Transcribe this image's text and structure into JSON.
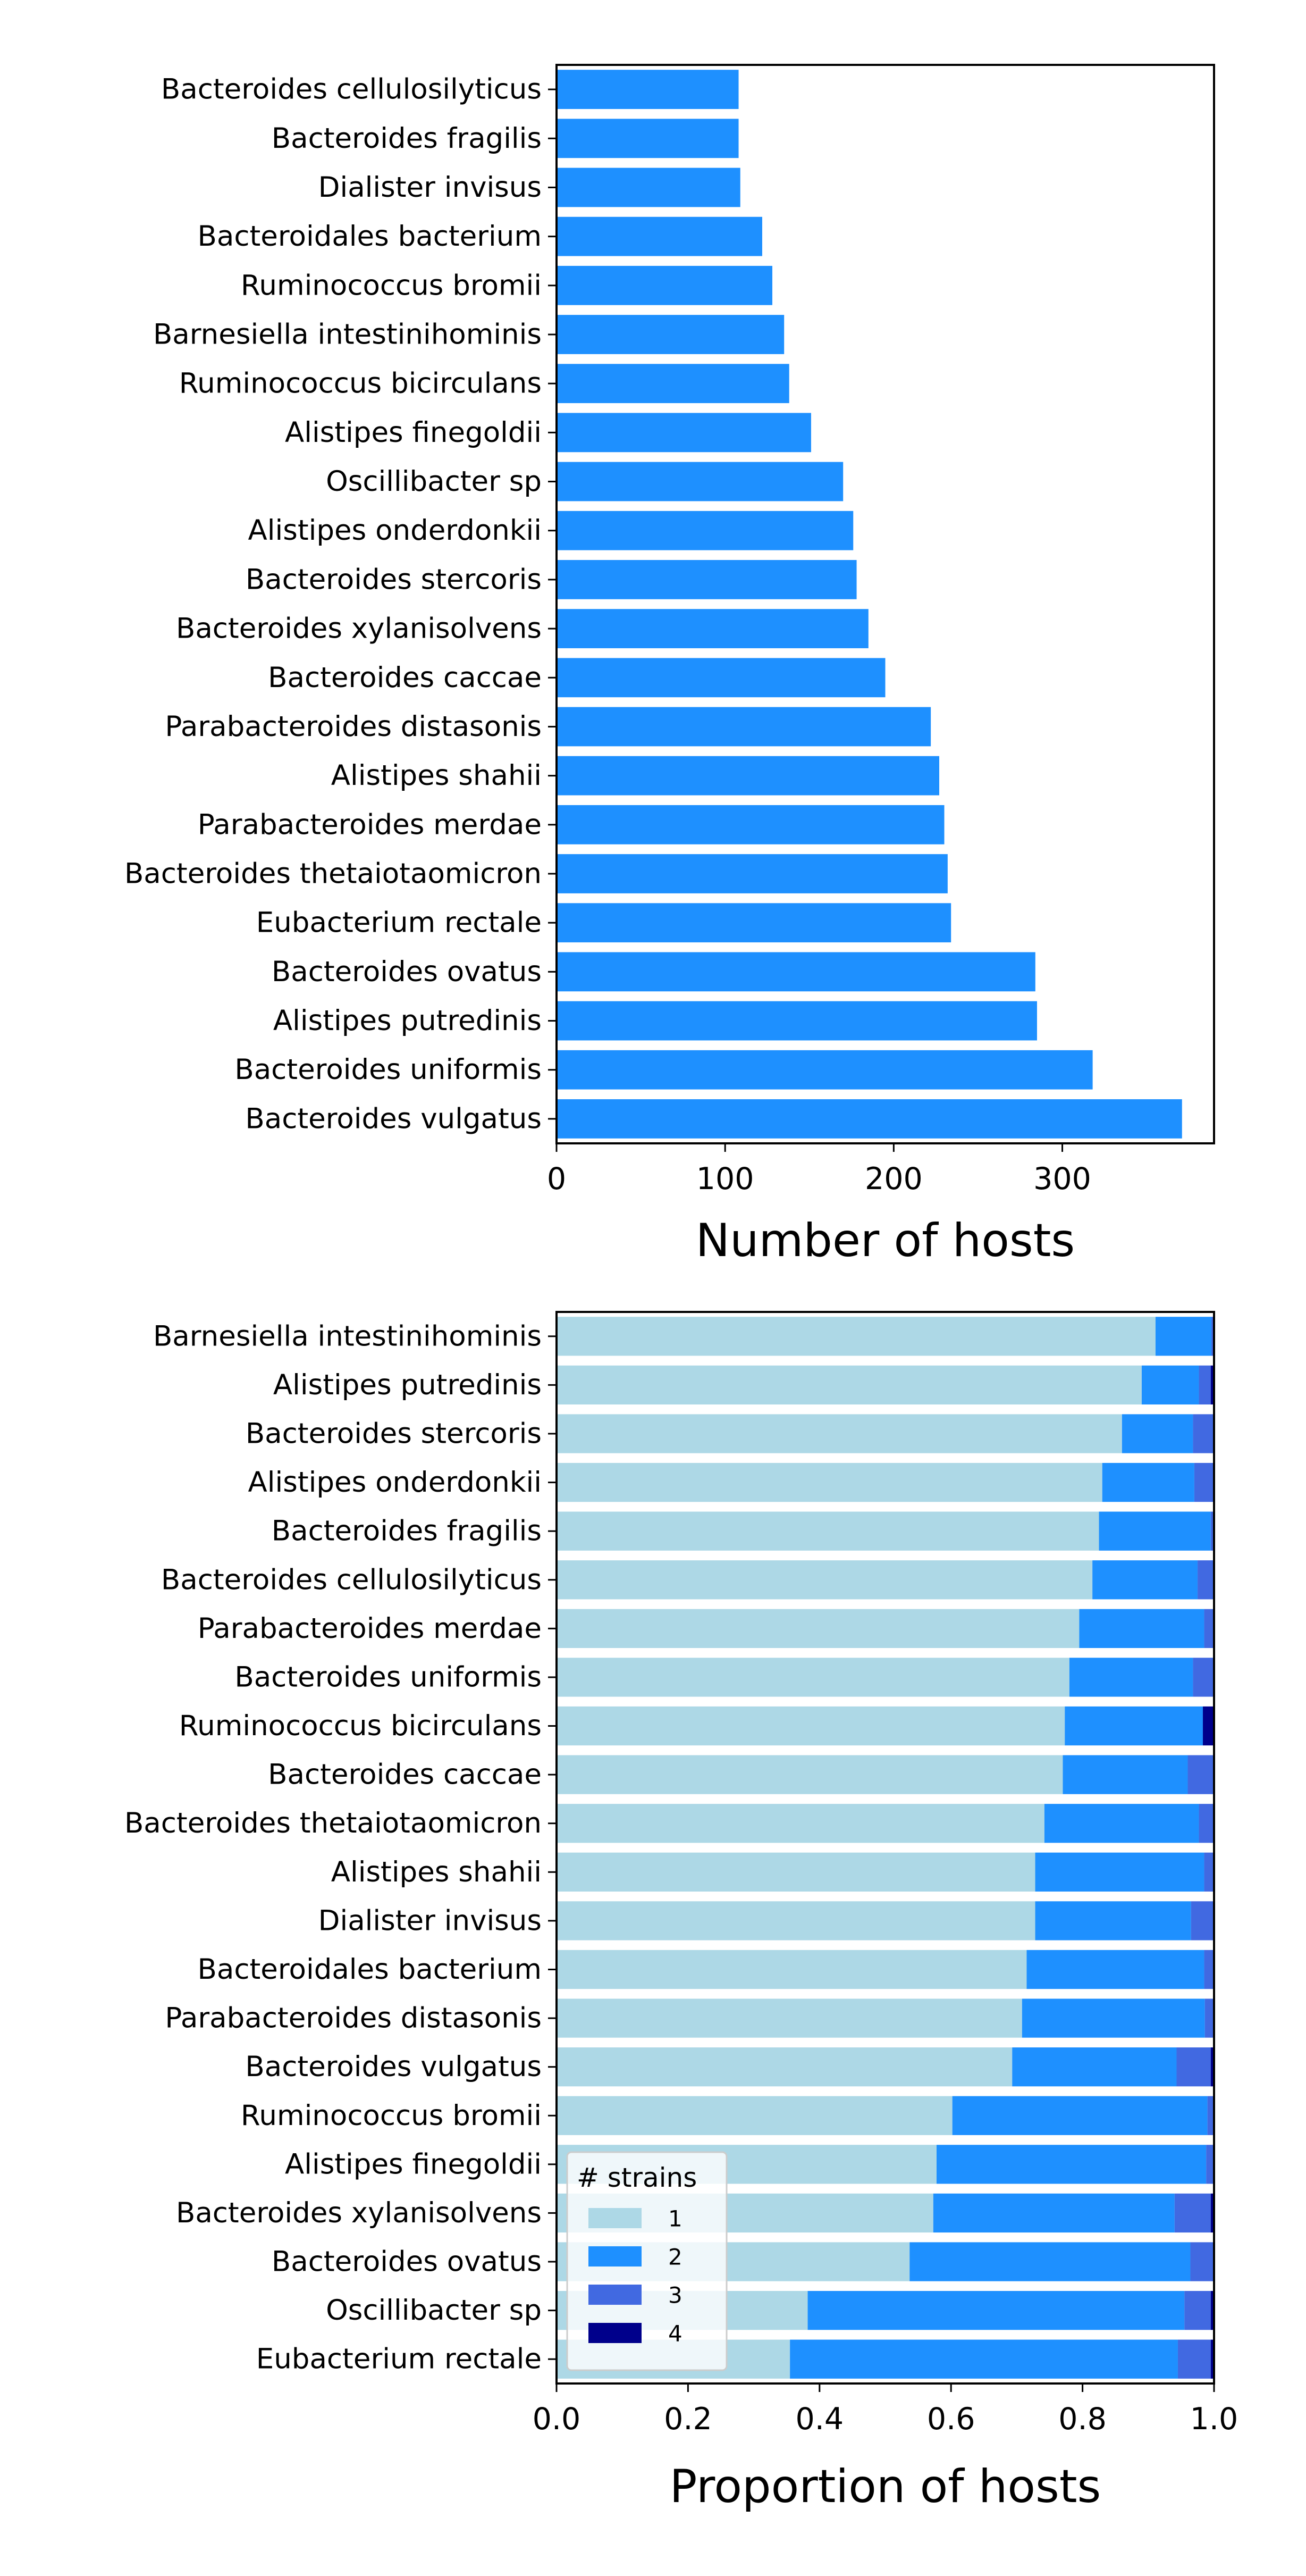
{
  "chart_data": [
    {
      "type": "bar",
      "orientation": "horizontal",
      "xlabel": "Number of hosts",
      "ylabel": "",
      "xlim": [
        0,
        390
      ],
      "xticks": [
        "0",
        "100",
        "200",
        "300"
      ],
      "grid": false,
      "color": "#1e90ff",
      "categories": [
        "Bacteroides cellulosilyticus",
        "Bacteroides fragilis",
        "Dialister invisus",
        "Bacteroidales bacterium",
        "Ruminococcus bromii",
        "Barnesiella intestinihominis",
        "Ruminococcus bicirculans",
        "Alistipes finegoldii",
        "Oscillibacter sp",
        "Alistipes onderdonkii",
        "Bacteroides stercoris",
        "Bacteroides xylanisolvens",
        "Bacteroides caccae",
        "Parabacteroides distasonis",
        "Alistipes shahii",
        "Parabacteroides merdae",
        "Bacteroides thetaiotaomicron",
        "Eubacterium rectale",
        "Bacteroides ovatus",
        "Alistipes putredinis",
        "Bacteroides uniformis",
        "Bacteroides vulgatus"
      ],
      "values": [
        108,
        108,
        109,
        122,
        128,
        135,
        138,
        151,
        170,
        176,
        178,
        185,
        195,
        222,
        227,
        230,
        232,
        234,
        284,
        285,
        318,
        371
      ]
    },
    {
      "type": "bar",
      "orientation": "horizontal",
      "stacked": true,
      "xlabel": "Proportion of hosts",
      "ylabel": "",
      "xlim": [
        0,
        1
      ],
      "xticks": [
        "0.0",
        "0.2",
        "0.4",
        "0.6",
        "0.8",
        "1.0"
      ],
      "grid": false,
      "legend": {
        "title": "# strains",
        "position": "lower-left",
        "entries": [
          "1",
          "2",
          "3",
          "4"
        ]
      },
      "categories": [
        "Barnesiella intestinihominis",
        "Alistipes putredinis",
        "Bacteroides stercoris",
        "Alistipes onderdonkii",
        "Bacteroides fragilis",
        "Bacteroides cellulosilyticus",
        "Parabacteroides merdae",
        "Bacteroides uniformis",
        "Ruminococcus bicirculans",
        "Bacteroides caccae",
        "Bacteroides thetaiotaomicron",
        "Alistipes shahii",
        "Dialister invisus",
        "Bacteroidales bacterium",
        "Parabacteroides distasonis",
        "Bacteroides vulgatus",
        "Ruminococcus bromii",
        "Alistipes finegoldii",
        "Bacteroides xylanisolvens",
        "Bacteroides ovatus",
        "Oscillibacter sp",
        "Eubacterium rectale"
      ],
      "series": [
        {
          "name": "1",
          "color": "#add8e6",
          "values": [
            0.911,
            0.89,
            0.86,
            0.83,
            0.825,
            0.815,
            0.795,
            0.78,
            0.773,
            0.77,
            0.742,
            0.728,
            0.728,
            0.715,
            0.708,
            0.693,
            0.602,
            0.578,
            0.573,
            0.537,
            0.382,
            0.355
          ]
        },
        {
          "name": "2",
          "color": "#1e90ff",
          "values": [
            0.085,
            0.087,
            0.108,
            0.14,
            0.17,
            0.16,
            0.19,
            0.188,
            0.21,
            0.19,
            0.235,
            0.257,
            0.237,
            0.27,
            0.278,
            0.25,
            0.388,
            0.41,
            0.367,
            0.427,
            0.573,
            0.59
          ]
        },
        {
          "name": "3",
          "color": "#4169e1",
          "values": [
            0.004,
            0.018,
            0.032,
            0.03,
            0.005,
            0.025,
            0.015,
            0.032,
            0.0,
            0.04,
            0.023,
            0.015,
            0.035,
            0.015,
            0.014,
            0.052,
            0.01,
            0.012,
            0.055,
            0.036,
            0.04,
            0.05
          ]
        },
        {
          "name": "4",
          "color": "#00008b",
          "values": [
            0.0,
            0.005,
            0.0,
            0.0,
            0.0,
            0.0,
            0.0,
            0.0,
            0.017,
            0.0,
            0.0,
            0.0,
            0.0,
            0.0,
            0.0,
            0.005,
            0.0,
            0.0,
            0.005,
            0.0,
            0.005,
            0.005
          ]
        }
      ]
    }
  ]
}
